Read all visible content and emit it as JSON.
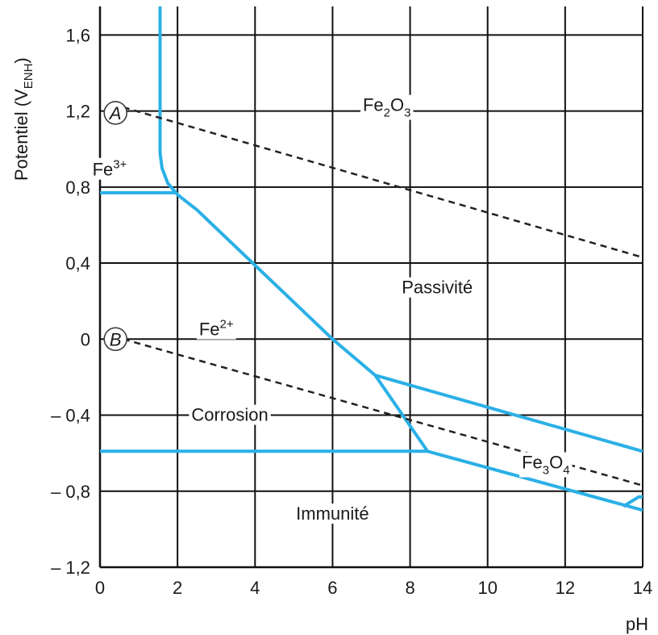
{
  "chart_data": {
    "type": "line",
    "xlabel": "pH",
    "ylabel": "Potentiel (V",
    "ylabel_sub": "ENH",
    "ylabel_close": ")",
    "xlim": [
      0,
      14
    ],
    "ylim": [
      -1.2,
      1.6
    ],
    "x_ticks": [
      0,
      2,
      4,
      6,
      8,
      10,
      12,
      14
    ],
    "y_ticks": [
      -1.2,
      -0.8,
      -0.4,
      0,
      0.4,
      0.8,
      1.2,
      1.6
    ],
    "x_tick_labels": [
      "0",
      "2",
      "4",
      "6",
      "8",
      "10",
      "12",
      "14"
    ],
    "y_tick_labels": [
      "– 1,2",
      "– 0,8",
      "– 0,4",
      "0",
      "0,4",
      "0,8",
      "1,2",
      "1,6"
    ],
    "grid": true,
    "series": [
      {
        "style": "solid",
        "color": "#2ab0e6",
        "points": [
          [
            1.55,
            1.75
          ],
          [
            1.55,
            0.98
          ],
          [
            1.6,
            0.9
          ],
          [
            1.75,
            0.82
          ],
          [
            2.0,
            0.76
          ],
          [
            2.5,
            0.68
          ],
          [
            6.0,
            0.0
          ],
          [
            7.1,
            -0.19
          ],
          [
            14.0,
            -0.59
          ]
        ]
      },
      {
        "style": "solid",
        "color": "#2ab0e6",
        "points": [
          [
            0,
            0.77
          ],
          [
            1.95,
            0.77
          ]
        ]
      },
      {
        "style": "solid",
        "color": "#2ab0e6",
        "points": [
          [
            7.1,
            -0.19
          ],
          [
            8.45,
            -0.59
          ],
          [
            14.0,
            -0.9
          ]
        ]
      },
      {
        "style": "solid",
        "color": "#2ab0e6",
        "points": [
          [
            0,
            -0.59
          ],
          [
            8.45,
            -0.59
          ]
        ]
      },
      {
        "style": "solid",
        "color": "#2ab0e6",
        "points": [
          [
            13.5,
            -0.88
          ],
          [
            13.9,
            -0.83
          ],
          [
            14.0,
            -0.83
          ]
        ]
      },
      {
        "style": "dashed",
        "color": "#222222",
        "points": [
          [
            0.6,
            1.22
          ],
          [
            14.0,
            0.43
          ]
        ]
      },
      {
        "style": "dashed",
        "color": "#222222",
        "points": [
          [
            0.6,
            0.0
          ],
          [
            14.0,
            -0.77
          ]
        ]
      }
    ],
    "annotations": [
      {
        "id": "A",
        "text": "A",
        "circled": true,
        "x": 0.4,
        "y": 1.19
      },
      {
        "id": "B",
        "text": "B",
        "circled": true,
        "x": 0.4,
        "y": 0.0
      },
      {
        "id": "fe2o3",
        "parts": [
          [
            "Fe",
            ""
          ],
          [
            "2",
            "sub"
          ],
          [
            "O",
            ""
          ],
          [
            "3",
            "sub"
          ]
        ],
        "x": 7.4,
        "y": 1.2
      },
      {
        "id": "fe3",
        "parts": [
          [
            "Fe",
            ""
          ],
          [
            "3+",
            "sup"
          ]
        ],
        "x": 0.25,
        "y": 0.86
      },
      {
        "id": "passivite",
        "parts": [
          [
            "Passivité",
            ""
          ]
        ],
        "x": 8.7,
        "y": 0.24
      },
      {
        "id": "fe2",
        "parts": [
          [
            "Fe",
            ""
          ],
          [
            "2+",
            "sup"
          ]
        ],
        "x": 3.0,
        "y": 0.02
      },
      {
        "id": "corrosion",
        "parts": [
          [
            "Corrosion",
            ""
          ]
        ],
        "x": 3.35,
        "y": -0.43
      },
      {
        "id": "fe3o4",
        "parts": [
          [
            "Fe",
            ""
          ],
          [
            "3",
            "sub"
          ],
          [
            "O",
            ""
          ],
          [
            "4",
            "sub"
          ]
        ],
        "x": 11.5,
        "y": -0.68
      },
      {
        "id": "immunite",
        "parts": [
          [
            "Immunité",
            ""
          ]
        ],
        "x": 6.0,
        "y": -0.95
      }
    ]
  },
  "colors": {
    "boundary": "#2ab0e6",
    "dashed": "#222222",
    "grid": "#111111",
    "text": "#1a1a1a"
  }
}
